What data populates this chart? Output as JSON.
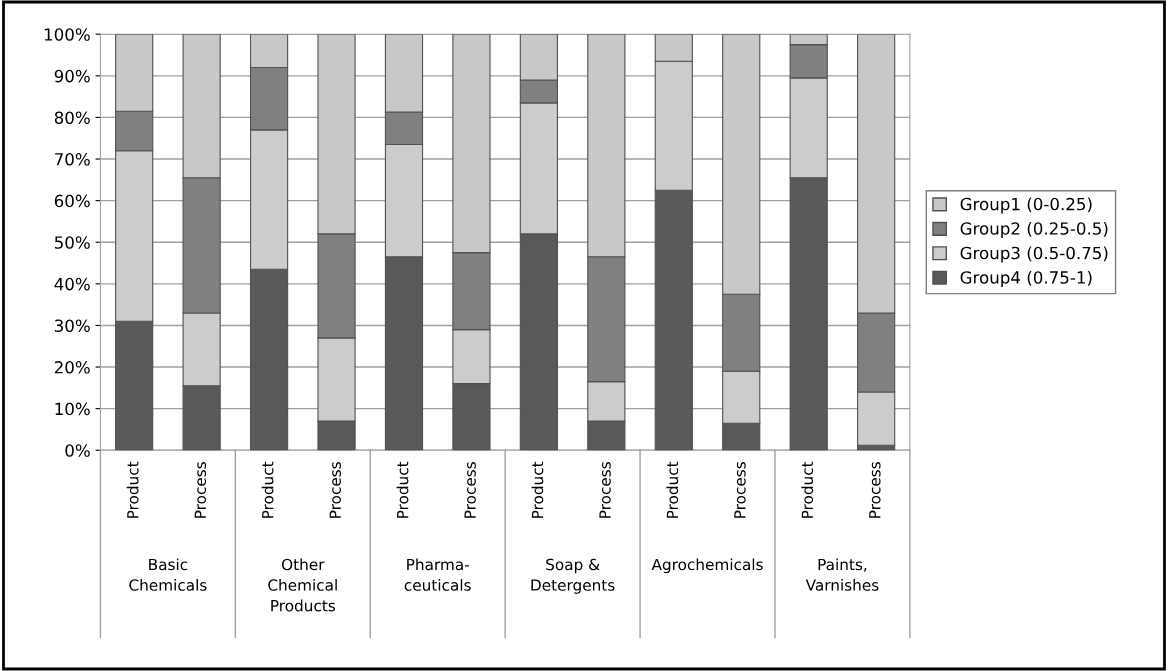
{
  "chart_data": {
    "type": "bar",
    "stacked": true,
    "categories": [
      "Product",
      "Process",
      "Product",
      "Process",
      "Product",
      "Process",
      "Product",
      "Process",
      "Product",
      "Process",
      "Product",
      "Process"
    ],
    "series": [
      {
        "name": "Group4 (0.75-1)",
        "color": "#595959",
        "values": [
          31,
          15.5,
          43.5,
          7,
          46.5,
          16,
          52,
          7,
          62.5,
          6.5,
          65.5,
          1.2
        ]
      },
      {
        "name": "Group3 (0.5-0.75)",
        "color": "#cccccc",
        "values": [
          41,
          17.5,
          33.5,
          20,
          27,
          13,
          31.5,
          9.5,
          31,
          12.5,
          24,
          12.8
        ]
      },
      {
        "name": "Group2 (0.25-0.5)",
        "color": "#808080",
        "values": [
          9.5,
          32.5,
          15,
          25,
          7.8,
          18.5,
          5.5,
          30,
          0,
          18.5,
          8,
          19
        ]
      },
      {
        "name": "Group1 (0-0.25)",
        "color": "#c8c8c8",
        "values": [
          18.5,
          34.5,
          8,
          48,
          18.7,
          52.5,
          11,
          53.5,
          6.5,
          62.5,
          2.5,
          67
        ]
      }
    ],
    "annotations": [
      "Basic\nChemicals",
      "Other\nChemical\nProducts",
      "Pharma-\nceuticals",
      "Soap &\nDetergents",
      "Agrochemicals",
      "Paints,\nVarnishes"
    ],
    "ylim": [
      0,
      100
    ],
    "yticks": [
      {
        "value": 0,
        "label": "0%"
      },
      {
        "value": 10,
        "label": "10%"
      },
      {
        "value": 20,
        "label": "20%"
      },
      {
        "value": 30,
        "label": "30%"
      },
      {
        "value": 40,
        "label": "40%"
      },
      {
        "value": 50,
        "label": "50%"
      },
      {
        "value": 60,
        "label": "60%"
      },
      {
        "value": 70,
        "label": "70%"
      },
      {
        "value": 80,
        "label": "80%"
      },
      {
        "value": 90,
        "label": "90%"
      },
      {
        "value": 100,
        "label": "100%"
      }
    ],
    "grid": "y",
    "legend": "right"
  }
}
